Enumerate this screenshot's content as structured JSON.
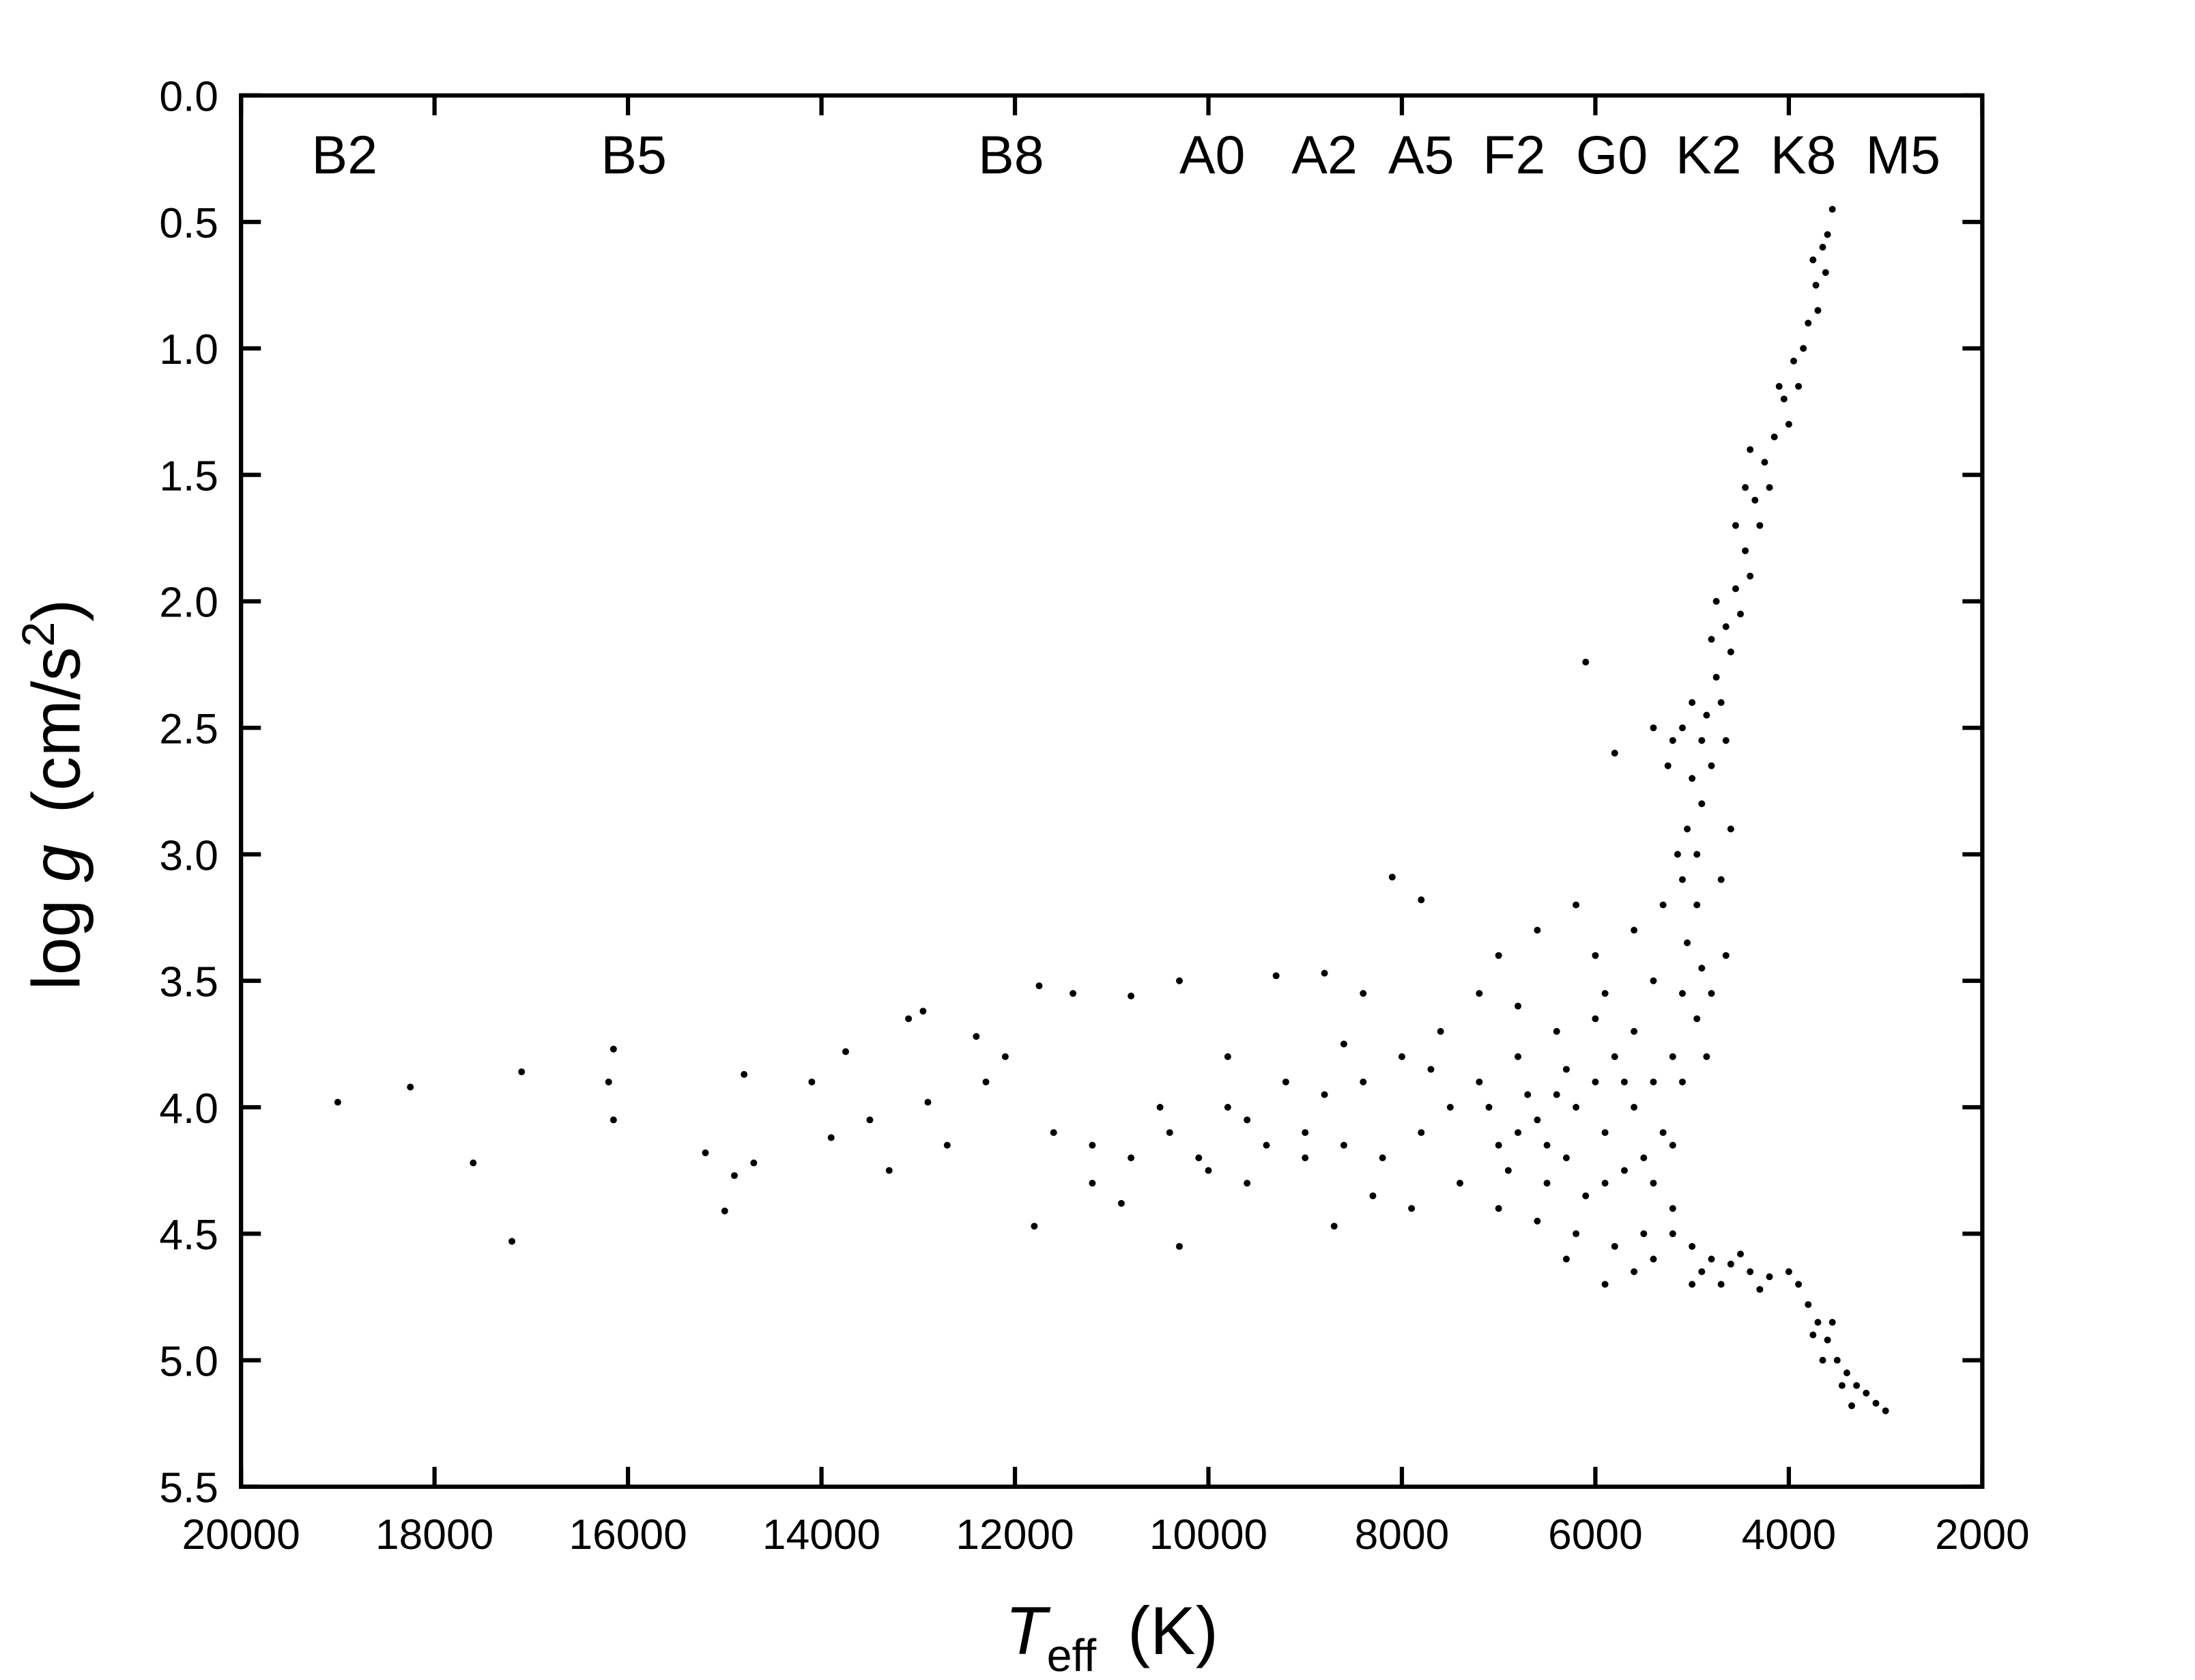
{
  "chart_data": {
    "type": "scatter",
    "xlabel": {
      "symbol": "T",
      "subscript": "eff",
      "unit": "(K)"
    },
    "ylabel": {
      "prefix": "log",
      "symbol": "g",
      "unit": "(cm/s",
      "superscript": "2",
      "suffix": ")"
    },
    "xlim": [
      20000,
      2000
    ],
    "xticks": [
      20000,
      18000,
      16000,
      14000,
      12000,
      10000,
      8000,
      6000,
      4000,
      2000
    ],
    "ylim": [
      0,
      5.5
    ],
    "y_inverted": true,
    "yticks": [
      {
        "value": 0,
        "label": "0.0"
      },
      0.5,
      {
        "value": 1,
        "label": "1.0"
      },
      1.5,
      {
        "value": 2,
        "label": "2.0"
      },
      2.5,
      {
        "value": 3,
        "label": "3.0"
      },
      3.5,
      {
        "value": 4,
        "label": "4.0"
      },
      4.5,
      {
        "value": 5,
        "label": "5.0"
      },
      5.5
    ],
    "color": "#000000",
    "spectral_types": [
      {
        "label": "B2",
        "teff": 18930
      },
      {
        "label": "B5",
        "teff": 15940
      },
      {
        "label": "B8",
        "teff": 12040
      },
      {
        "label": "A0",
        "teff": 9960
      },
      {
        "label": "A2",
        "teff": 8800
      },
      {
        "label": "A5",
        "teff": 7800
      },
      {
        "label": "F2",
        "teff": 6840
      },
      {
        "label": "G0",
        "teff": 5830
      },
      {
        "label": "K2",
        "teff": 4830
      },
      {
        "label": "K8",
        "teff": 3850
      },
      {
        "label": "M5",
        "teff": 2820
      }
    ],
    "x": [
      19000,
      18250,
      17600,
      17100,
      17200,
      16200,
      16150,
      16150,
      15200,
      15000,
      14800,
      14900,
      14700,
      14100,
      13900,
      13750,
      13500,
      13300,
      13100,
      12950,
      12900,
      12700,
      12400,
      12300,
      12100,
      11750,
      11800,
      11600,
      11400,
      11200,
      10900,
      10800,
      10500,
      10300,
      10300,
      10100,
      9800,
      9600,
      9300,
      9000,
      8800,
      8700,
      8400,
      8100,
      7800,
      7000,
      6100,
      3550,
      3600,
      3650,
      3620,
      3720,
      3700,
      3800,
      3850,
      3950,
      3900,
      4050,
      4000,
      4150,
      4250,
      4200,
      4350,
      4300,
      4450,
      4400,
      4550,
      4500,
      4650,
      4600,
      4750,
      4700,
      4850,
      4650,
      4900,
      5100,
      4800,
      5000,
      4900,
      5050,
      4950,
      5100,
      4950,
      5050,
      4900,
      5100,
      4950,
      4800,
      4850,
      5200,
      5000,
      4750,
      4550,
      4400,
      4100,
      3750,
      4800,
      5250,
      4450,
      5150,
      5300,
      4700,
      4650,
      4600,
      5400,
      5800,
      5200,
      5400,
      5600,
      5800,
      6000,
      6200,
      6400,
      6600,
      6800,
      7000,
      5500,
      5700,
      5900,
      6100,
      6300,
      6500,
      5300,
      5600,
      6000,
      6400,
      6800,
      7200,
      7500,
      7800,
      8200,
      8600,
      9000,
      9400,
      7400,
      7000,
      6600,
      6200,
      5800,
      5500,
      5200,
      5400,
      6800,
      7200,
      6000,
      5600,
      5400,
      6200,
      7600,
      8000,
      8400,
      8800,
      9200,
      9600,
      10000,
      7900,
      8300,
      6700,
      6300,
      5900,
      6500,
      5700,
      6900,
      5200,
      5100,
      5900,
      6600,
      7100,
      7700,
      8600,
      9800,
      10400,
      10800,
      11200,
      6300,
      5900,
      5600,
      5200,
      5000,
      4800,
      4600,
      4400,
      4200,
      4000,
      3900,
      3800,
      3700,
      3600,
      3500,
      3400,
      3300,
      3200,
      3100,
      3000,
      4700,
      4300,
      3750,
      3450,
      3550,
      4900,
      4500,
      3650,
      3350,
      5400,
      5000
    ],
    "y": [
      3.98,
      3.92,
      4.22,
      3.86,
      4.53,
      3.9,
      3.77,
      4.05,
      4.18,
      4.41,
      3.87,
      4.27,
      4.22,
      3.9,
      4.12,
      3.78,
      4.05,
      4.25,
      3.65,
      3.62,
      3.98,
      4.15,
      3.72,
      3.9,
      3.8,
      3.52,
      4.47,
      4.1,
      3.55,
      4.15,
      4.38,
      3.56,
      4.0,
      3.5,
      4.55,
      4.2,
      3.8,
      4.05,
      3.48,
      4.1,
      3.47,
      4.47,
      3.55,
      3.09,
      3.18,
      3.4,
      2.24,
      0.45,
      0.55,
      0.6,
      0.7,
      0.75,
      0.85,
      0.9,
      1.0,
      1.05,
      1.15,
      1.2,
      1.3,
      1.35,
      1.45,
      1.55,
      1.6,
      1.7,
      1.8,
      1.9,
      1.95,
      2.05,
      2.1,
      2.2,
      2.3,
      2.4,
      2.45,
      2.55,
      2.55,
      2.5,
      2.65,
      2.7,
      2.8,
      2.9,
      3.0,
      3.1,
      3.2,
      3.35,
      3.45,
      3.55,
      3.65,
      3.55,
      3.8,
      2.55,
      2.4,
      2.0,
      1.7,
      1.4,
      1.15,
      0.65,
      2.15,
      2.65,
      1.55,
      3.0,
      3.2,
      3.1,
      3.4,
      2.9,
      2.5,
      2.6,
      3.8,
      3.9,
      4.0,
      3.8,
      3.9,
      4.0,
      3.95,
      4.05,
      4.1,
      4.15,
      4.2,
      4.25,
      4.3,
      4.35,
      4.2,
      4.3,
      4.1,
      3.7,
      3.65,
      3.7,
      3.8,
      3.9,
      4.0,
      4.1,
      4.2,
      4.15,
      4.2,
      4.15,
      4.3,
      4.4,
      4.45,
      4.5,
      4.55,
      4.5,
      4.4,
      4.3,
      3.6,
      3.55,
      3.4,
      3.3,
      3.5,
      3.2,
      3.7,
      3.8,
      3.9,
      3.95,
      3.9,
      4.3,
      4.25,
      4.4,
      4.35,
      3.95,
      3.85,
      4.1,
      4.15,
      3.9,
      4.25,
      4.15,
      3.9,
      3.55,
      3.3,
      4.0,
      3.85,
      3.75,
      4.0,
      4.1,
      4.2,
      4.3,
      4.6,
      4.7,
      4.65,
      4.5,
      4.55,
      4.6,
      4.62,
      4.65,
      4.67,
      4.65,
      4.7,
      4.78,
      4.85,
      4.92,
      5.0,
      5.05,
      5.1,
      5.13,
      5.17,
      5.2,
      4.7,
      4.72,
      4.9,
      5.1,
      4.85,
      4.65,
      4.58,
      5.0,
      5.18,
      4.6,
      4.7
    ]
  }
}
